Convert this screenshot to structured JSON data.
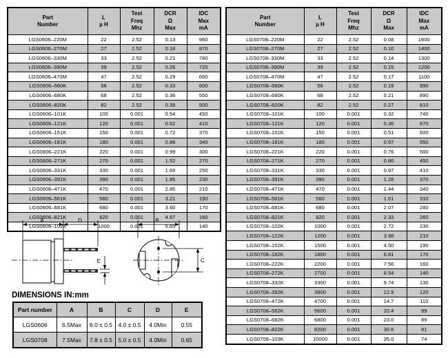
{
  "colors": {
    "header_bg": "#c9c9c9",
    "row_alt": "#c9c9c9",
    "border": "#000000"
  },
  "parts_tables": [
    {
      "headers": [
        "Part\nNumber",
        "L\nµ H",
        "Test\nFreq\nMhz",
        "DCR\nΩ\nMax",
        "IDC\nMax\nmA"
      ],
      "rows": [
        [
          "LGS0606–220M",
          "22",
          "2.52",
          "0.13",
          "960"
        ],
        [
          "LGS0606–270M",
          "27",
          "2.52",
          "0.18",
          "870"
        ],
        [
          "LGS0606–330M",
          "33",
          "2.52",
          "0.21",
          "780"
        ],
        [
          "LGS0606–390M",
          "39",
          "2.52",
          "0.26",
          "720"
        ],
        [
          "LGS0606–470M",
          "47",
          "2.52",
          "0.29",
          "660"
        ],
        [
          "LGS0606–560K",
          "56",
          "2.52",
          "0.33",
          "600"
        ],
        [
          "LGS0606–680K",
          "68",
          "2.52",
          "0.36",
          "550"
        ],
        [
          "LGS0606–820K",
          "82",
          "2.52",
          "0.39",
          "500"
        ],
        [
          "LGS0606–101K",
          "100",
          "0.001",
          "0.54",
          "450"
        ],
        [
          "LGS0606–121K",
          "120",
          "0.001",
          "0.62",
          "410"
        ],
        [
          "LGS0606–151K",
          "150",
          "0.001",
          "0.72",
          "370"
        ],
        [
          "LGS0606–181K",
          "180",
          "0.001",
          "0.88",
          "340"
        ],
        [
          "LGS0606–221K",
          "220",
          "0.001",
          "0.99",
          "300"
        ],
        [
          "LGS0606–271K",
          "270",
          "0.001",
          "1.52",
          "270"
        ],
        [
          "LGS0606–331K",
          "330",
          "0.001",
          "1.69",
          "250"
        ],
        [
          "LGS0606–391K",
          "390",
          "0.001",
          "1.85",
          "230"
        ],
        [
          "LGS0606–471K",
          "470",
          "0.001",
          "2.85",
          "210"
        ],
        [
          "LGS0606–561K",
          "560",
          "0.001",
          "3.21",
          "190"
        ],
        [
          "LGS0606–681K",
          "680",
          "0.001",
          "3.60",
          "170"
        ],
        [
          "LGS0606–821K",
          "820",
          "0.001",
          "4.87",
          "160"
        ],
        [
          "LGS0606–102K",
          "1000",
          "0.001",
          "5.65",
          "140"
        ]
      ]
    },
    {
      "headers": [
        "Part\nNumber",
        "L\nµ H",
        "Test\nFreq\nMhz",
        "DCR\nΩ\nMax",
        "IDC\nMax\nmA"
      ],
      "rows": [
        [
          "LGS0708–220M",
          "22",
          "2.52",
          "0.08",
          "1600"
        ],
        [
          "LGS0708–270M",
          "27",
          "2.52",
          "0.10",
          "1400"
        ],
        [
          "LGS0708–330M",
          "33",
          "2.52",
          "0.14",
          "1300"
        ],
        [
          "LGS0708–390M",
          "39",
          "2.52",
          "0.15",
          "1200"
        ],
        [
          "LGS0708–470M",
          "47",
          "2.52",
          "0.17",
          "1100"
        ],
        [
          "LGS0708–560K",
          "56",
          "2.52",
          "0.19",
          "990"
        ],
        [
          "LGS0708–680K",
          "68",
          "2.52",
          "0.21",
          "890"
        ],
        [
          "LGS0708–820K",
          "82",
          "2.52",
          "0.27",
          "810"
        ],
        [
          "LGS0708–101K",
          "100",
          "0.001",
          "0.32",
          "740"
        ],
        [
          "LGS0708–121K",
          "120",
          "0.001",
          "0.36",
          "670"
        ],
        [
          "LGS0708–151K",
          "150",
          "0.001",
          "0.51",
          "600"
        ],
        [
          "LGS0708–181K",
          "180",
          "0.001",
          "0.57",
          "550"
        ],
        [
          "LGS0708–221K",
          "220",
          "0.001",
          "0.76",
          "500"
        ],
        [
          "LGS0708–271K",
          "270",
          "0.001",
          "0.86",
          "450"
        ],
        [
          "LGS0708–331K",
          "330",
          "0.001",
          "0.97",
          "410"
        ],
        [
          "LGS0708–391K",
          "390",
          "0.001",
          "1.28",
          "370"
        ],
        [
          "LGS0708–471K",
          "470",
          "0.001",
          "1.44",
          "340"
        ],
        [
          "LGS0708–561K",
          "560",
          "0.001",
          "1.61",
          "310"
        ],
        [
          "LGS0708–681K",
          "680",
          "0.001",
          "2.07",
          "280"
        ],
        [
          "LGS0708–821K",
          "820",
          "0.001",
          "2.33",
          "260"
        ],
        [
          "LGS0708–102K",
          "1000",
          "0.001",
          "2.72",
          "230"
        ],
        [
          "LGS0708–122K",
          "1200",
          "0.001",
          "3.98",
          "210"
        ],
        [
          "LGS0708–152K",
          "1500",
          "0.001",
          "4.50",
          "190"
        ],
        [
          "LGS0708–182K",
          "1800",
          "0.001",
          "6.81",
          "170"
        ],
        [
          "LGS0708–222K",
          "2200",
          "0.001",
          "7.56",
          "160"
        ],
        [
          "LGS0708–272K",
          "2700",
          "0.001",
          "8.54",
          "140"
        ],
        [
          "LGS0708–332K",
          "3300",
          "0.001",
          "9.74",
          "130"
        ],
        [
          "LGS0708–392K",
          "3900",
          "0.001",
          "12.9",
          "120"
        ],
        [
          "LGS0708–472K",
          "4700",
          "0.001",
          "14.7",
          "110"
        ],
        [
          "LGS0708–562K",
          "5600",
          "0.001",
          "20.4",
          "99"
        ],
        [
          "LGS0708–682K",
          "6800",
          "0.001",
          "23.0",
          "89"
        ],
        [
          "LGS0708–822K",
          "8200",
          "0.001",
          "30.6",
          "81"
        ],
        [
          "LGS0708–103K",
          "10000",
          "0.001",
          "35.0",
          "74"
        ]
      ]
    }
  ],
  "dimensions_title": "DIMENSIONS IN:mm",
  "dimensions_table": {
    "headers": [
      "Part number",
      "A",
      "B",
      "C",
      "D",
      "E"
    ],
    "rows": [
      [
        "LGS0606",
        "6.5Max",
        "6.0 ± 0.5",
        "4.0 ± 0.5",
        "4.0Min",
        "0.55"
      ],
      [
        "LGS0708",
        "7.5Max",
        "7.8 ± 0.5",
        "5.0 ± 0.5",
        "4.0Min",
        "0.65"
      ]
    ]
  },
  "drawing": {
    "labels": {
      "A": "A",
      "B": "B",
      "C": "C",
      "D": "D",
      "E": "E"
    }
  }
}
